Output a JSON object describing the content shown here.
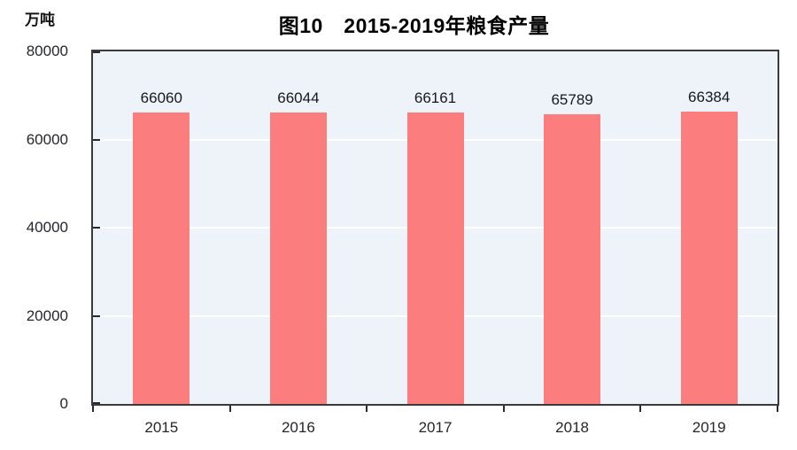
{
  "chart_data": {
    "type": "bar",
    "title": "图10　2015-2019年粮食产量",
    "unit_label": "万吨",
    "categories": [
      "2015",
      "2016",
      "2017",
      "2018",
      "2019"
    ],
    "values": [
      66060,
      66044,
      66161,
      65789,
      66384
    ],
    "data_labels": [
      "66060",
      "66044",
      "66161",
      "65789",
      "66384"
    ],
    "series_name": "粮食产量",
    "xlabel": "",
    "ylabel": "万吨",
    "ylim": [
      0,
      80000
    ],
    "yticks": [
      0,
      20000,
      40000,
      60000,
      80000
    ],
    "ytick_labels": [
      "0",
      "20000",
      "40000",
      "60000",
      "80000"
    ],
    "grid": "horizontal",
    "legend_position": "none",
    "colors": {
      "bar": "#fb7d7d",
      "plot_background": "#edf3f8",
      "axis_border": "#3a3a3e",
      "gridline": "#ffffff",
      "tick": "#2a2a2e",
      "text": "#24262b",
      "title": "#000000",
      "page_background": "#ffffff"
    }
  }
}
